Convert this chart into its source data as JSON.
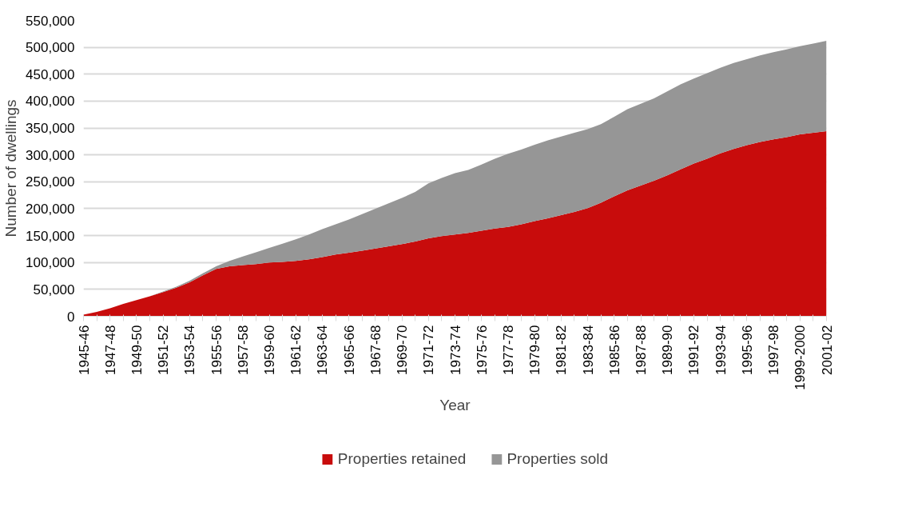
{
  "chart_data": {
    "type": "area",
    "stacked": true,
    "xlabel": "Year",
    "ylabel": "Number of dwellings",
    "categories": [
      "1945-46",
      null,
      "1947-48",
      null,
      "1949-50",
      null,
      "1951-52",
      null,
      "1953-54",
      null,
      "1955-56",
      null,
      "1957-58",
      null,
      "1959-60",
      null,
      "1961-62",
      null,
      "1963-64",
      null,
      "1965-66",
      null,
      "1967-68",
      null,
      "1969-70",
      null,
      "1971-72",
      null,
      "1973-74",
      null,
      "1975-76",
      null,
      "1977-78",
      null,
      "1979-80",
      null,
      "1981-82",
      null,
      "1983-84",
      null,
      "1985-86",
      null,
      "1987-88",
      null,
      "1989-90",
      null,
      "1991-92",
      null,
      "1993-94",
      null,
      "1995-96",
      null,
      "1997-98",
      null,
      "1999-2000",
      null,
      "2001-02"
    ],
    "series": [
      {
        "name": "Properties retained",
        "color": "#c80c0c",
        "values": [
          3000,
          8000,
          15000,
          23000,
          30000,
          37000,
          45000,
          53000,
          63000,
          76000,
          88000,
          93000,
          95000,
          97000,
          100000,
          101000,
          103000,
          106000,
          110000,
          115000,
          118000,
          122000,
          126000,
          130000,
          134000,
          139000,
          145000,
          149000,
          152000,
          155000,
          159000,
          163000,
          166000,
          171000,
          177000,
          182000,
          188000,
          194000,
          201000,
          211000,
          223000,
          234000,
          243000,
          252000,
          262000,
          273000,
          284000,
          293000,
          303000,
          311000,
          318000,
          324000,
          329000,
          333000,
          338000,
          341000,
          344000
        ]
      },
      {
        "name": "Properties sold",
        "color": "#969696",
        "values": [
          0,
          0,
          0,
          0,
          0,
          0,
          1000,
          2000,
          3000,
          4000,
          5000,
          10000,
          16000,
          22000,
          27000,
          34000,
          40000,
          46000,
          52000,
          56000,
          62000,
          68000,
          74000,
          80000,
          86000,
          92000,
          102000,
          108000,
          114000,
          117000,
          123000,
          130000,
          136000,
          139000,
          142000,
          145000,
          146000,
          147000,
          147000,
          146000,
          148000,
          151000,
          152000,
          153000,
          156000,
          158000,
          158000,
          159000,
          159000,
          160000,
          160000,
          161000,
          162000,
          163000,
          164000,
          166000,
          168000
        ]
      }
    ],
    "ylim": [
      0,
      550000
    ],
    "yticks": [
      0,
      {
        "value": 50000,
        "label": "50,000"
      },
      {
        "value": 100000,
        "label": "100,000"
      },
      {
        "value": 150000,
        "label": "150,000"
      },
      {
        "value": 200000,
        "label": "200,000"
      },
      {
        "value": 250000,
        "label": "250,000"
      },
      {
        "value": 300000,
        "label": "300,000"
      },
      {
        "value": 350000,
        "label": "350,000"
      },
      {
        "value": 400000,
        "label": "400,000"
      },
      {
        "value": 450000,
        "label": "450,000"
      },
      {
        "value": 500000,
        "label": "500,000"
      },
      {
        "value": 550000,
        "label": "550,000"
      }
    ],
    "grid": "y",
    "legend": "bottom"
  }
}
